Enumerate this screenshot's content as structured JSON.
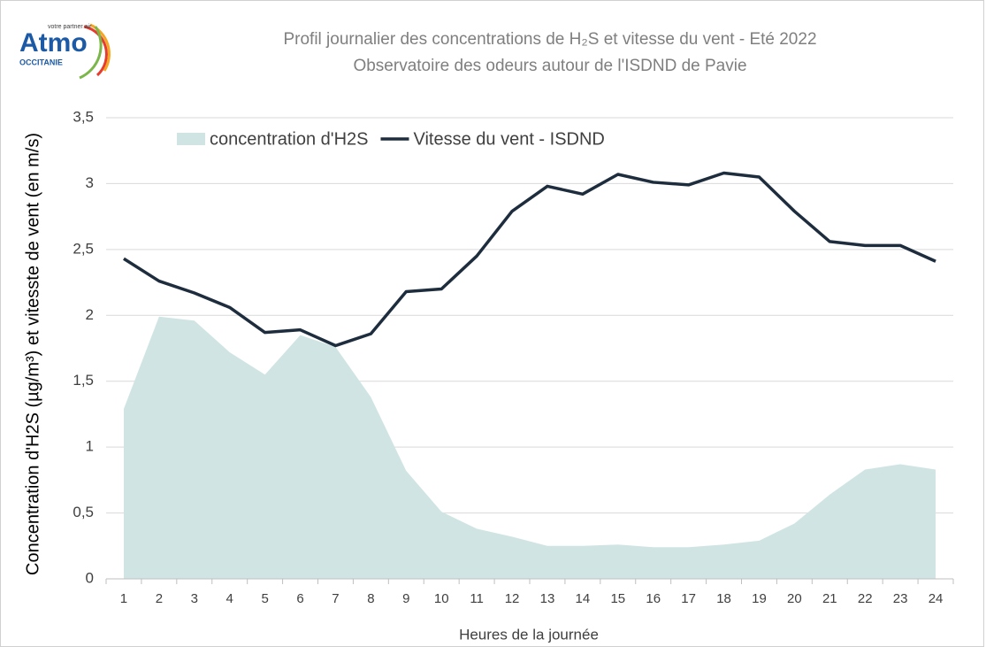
{
  "logo": {
    "name": "Atmo",
    "tagline": "votre partner air",
    "region": "OCCITANIE"
  },
  "chart_data": {
    "type": "area-line",
    "title": "Profil journalier des concentrations de H₂S et vitesse du vent - Eté 2022",
    "subtitle": "Observatoire des odeurs autour de l'ISDND de Pavie",
    "x_label": "Heures de la journée",
    "y_label": "Concentration d'H2S (µg/m³)  et  vitesste de vent (en m/s)",
    "categories": [
      "1",
      "2",
      "3",
      "4",
      "5",
      "6",
      "7",
      "8",
      "9",
      "10",
      "11",
      "12",
      "13",
      "14",
      "15",
      "16",
      "17",
      "18",
      "19",
      "20",
      "21",
      "22",
      "23",
      "24"
    ],
    "series": [
      {
        "name": "concentration d'H2S",
        "type": "area",
        "color": "#d0e5e3",
        "values": [
          1.29,
          1.99,
          1.96,
          1.72,
          1.55,
          1.85,
          1.76,
          1.38,
          0.82,
          0.51,
          0.38,
          0.32,
          0.25,
          0.25,
          0.26,
          0.24,
          0.24,
          0.26,
          0.29,
          0.42,
          0.64,
          0.83,
          0.87,
          0.83
        ]
      },
      {
        "name": "Vitesse du vent - ISDND",
        "type": "line",
        "color": "#1e2d3e",
        "values": [
          2.43,
          2.26,
          2.17,
          2.06,
          1.87,
          1.89,
          1.77,
          1.86,
          2.18,
          2.2,
          2.45,
          2.79,
          2.98,
          2.92,
          3.07,
          3.01,
          2.99,
          3.08,
          3.05,
          2.79,
          2.56,
          2.53,
          2.53,
          2.41
        ]
      }
    ],
    "ylim": [
      0,
      3.5
    ],
    "yticks": [
      0,
      {
        "value": 0.5,
        "label": "0,5"
      },
      1,
      {
        "value": 1.5,
        "label": "1,5"
      },
      2,
      {
        "value": 2.5,
        "label": "2,5"
      },
      3,
      {
        "value": 3.5,
        "label": "3,5"
      }
    ],
    "grid": true,
    "legend": "top"
  }
}
